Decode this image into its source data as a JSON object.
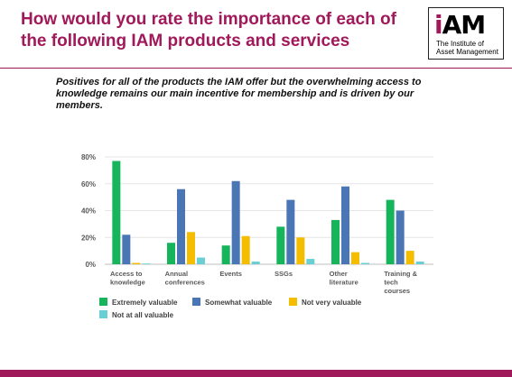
{
  "slide": {
    "title": "How would you rate the importance of each of the following IAM products and services",
    "subtitle": "Positives for all of the products the IAM offer but the overwhelming access to knowledge remains our main incentive for membership and is driven by our members.",
    "logo": {
      "mark": "iAM",
      "text_line1": "The Institute of",
      "text_line2": "Asset Management"
    },
    "accent_color": "#a0195a"
  },
  "chart_data": {
    "type": "bar",
    "categories": [
      [
        "Access to",
        "knowledge"
      ],
      [
        "Annual",
        "conferences"
      ],
      [
        "Events"
      ],
      [
        "SSGs"
      ],
      [
        "Other",
        "literature"
      ],
      [
        "Training &",
        "tech",
        "courses"
      ]
    ],
    "series": [
      {
        "name": "Extremely valuable",
        "color": "#16b55b",
        "values": [
          77,
          16,
          14,
          28,
          33,
          48
        ]
      },
      {
        "name": "Somewhat valuable",
        "color": "#4a76b5",
        "values": [
          22,
          56,
          62,
          48,
          58,
          40
        ]
      },
      {
        "name": "Not very valuable",
        "color": "#f5bd00",
        "values": [
          1,
          24,
          21,
          20,
          9,
          10
        ]
      },
      {
        "name": "Not at all valuable",
        "color": "#69cfd4",
        "values": [
          0,
          5,
          2,
          4,
          1,
          2
        ]
      }
    ],
    "yticks": [
      "0%",
      "20%",
      "40%",
      "60%",
      "80%"
    ],
    "ylim": [
      0,
      80
    ],
    "grid": true,
    "legend_position": "bottom"
  }
}
